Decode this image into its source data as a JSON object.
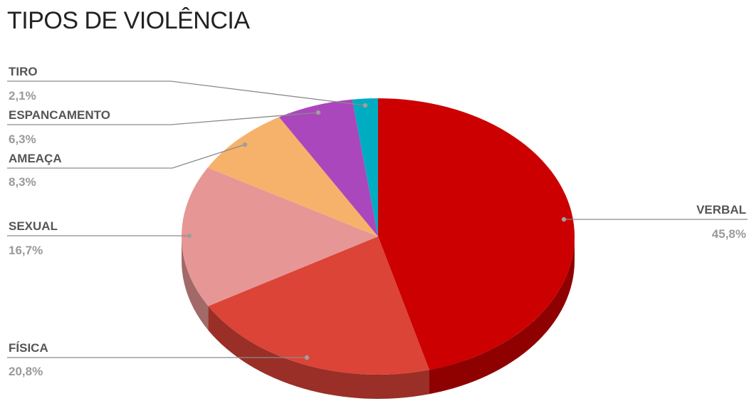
{
  "chart_data": {
    "type": "pie",
    "title": "TIPOS DE VIOLÊNCIA",
    "slices": [
      {
        "label": "VERBAL",
        "value": 45.8,
        "value_label": "45,8%",
        "color": "#cc0000",
        "side_color": "#8f0000"
      },
      {
        "label": "FÍSICA",
        "value": 20.8,
        "value_label": "20,8%",
        "color": "#db4437",
        "side_color": "#992f27"
      },
      {
        "label": "SEXUAL",
        "value": 16.7,
        "value_label": "16,7%",
        "color": "#e79696",
        "side_color": "#a26969"
      },
      {
        "label": "AMEAÇA",
        "value": 8.3,
        "value_label": "8,3%",
        "color": "#f6b26b",
        "side_color": "#ac7d4b"
      },
      {
        "label": "ESPANCAMENTO",
        "value": 6.3,
        "value_label": "6,3%",
        "color": "#ab47bc",
        "side_color": "#783284"
      },
      {
        "label": "TIRO",
        "value": 2.1,
        "value_label": "2,1%",
        "color": "#00acc1",
        "side_color": "#007887"
      }
    ]
  }
}
